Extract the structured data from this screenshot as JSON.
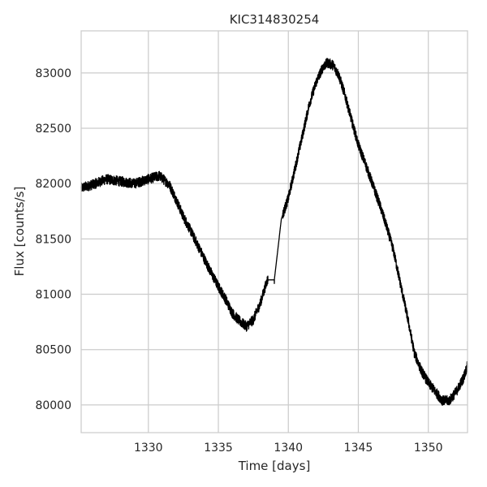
{
  "chart_data": {
    "type": "line",
    "title": "KIC314830254",
    "xlabel": "Time [days]",
    "ylabel": "Flux [counts/s]",
    "xlim": [
      1325.2,
      1352.8
    ],
    "ylim": [
      79750,
      83380
    ],
    "x_ticks": [
      1330,
      1335,
      1340,
      1345,
      1350
    ],
    "y_ticks": [
      80000,
      80500,
      81000,
      81500,
      82000,
      82500,
      83000
    ],
    "x_tick_labels": [
      "1330",
      "1335",
      "1340",
      "1345",
      "1350"
    ],
    "y_tick_labels": [
      "80000",
      "80500",
      "81000",
      "81500",
      "82000",
      "82500",
      "83000"
    ],
    "grid": true,
    "series_color": "#000000",
    "grid_color": "#cccccc",
    "series": [
      {
        "scatter_amplitude": 45,
        "x": [
          1325.2,
          1326.0,
          1327.0,
          1328.0,
          1329.0,
          1330.0,
          1330.8,
          1331.5,
          1332.0,
          1332.5,
          1333.0,
          1333.5,
          1334.0,
          1334.5,
          1335.0,
          1335.5,
          1336.0,
          1336.5,
          1337.0,
          1337.5,
          1338.0,
          1338.5,
          1339.0,
          1339.5,
          1340.0,
          1340.5,
          1341.0,
          1341.5,
          1342.0,
          1342.5,
          1342.8,
          1343.2,
          1343.6,
          1344.0,
          1344.5,
          1345.0,
          1345.5,
          1346.0,
          1346.5,
          1347.0,
          1347.5,
          1348.0,
          1348.5,
          1349.0,
          1349.5,
          1350.0,
          1350.5,
          1351.0,
          1351.5,
          1352.0,
          1352.5,
          1352.8
        ],
        "y": [
          81960,
          81990,
          82040,
          82020,
          82000,
          82040,
          82070,
          81990,
          81850,
          81700,
          81580,
          81450,
          81320,
          81190,
          81070,
          80960,
          80830,
          80760,
          80710,
          80770,
          80920,
          81130,
          81130,
          81680,
          81870,
          82150,
          82430,
          82720,
          82920,
          83060,
          83090,
          83070,
          82980,
          82820,
          82580,
          82350,
          82180,
          82000,
          81820,
          81620,
          81400,
          81100,
          80800,
          80470,
          80310,
          80200,
          80120,
          80040,
          80040,
          80120,
          80240,
          80360
        ]
      }
    ]
  }
}
